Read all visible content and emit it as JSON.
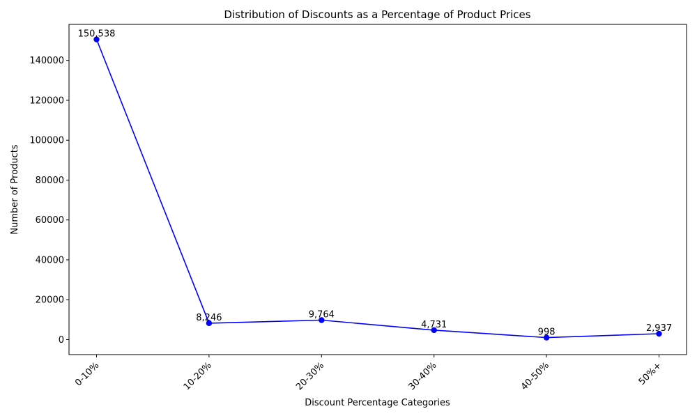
{
  "chart_data": {
    "type": "line",
    "title": "Distribution of Discounts as a Percentage of Product Prices",
    "xlabel": "Discount Percentage Categories",
    "ylabel": "Number of Products",
    "categories": [
      "0-10%",
      "10-20%",
      "20-30%",
      "30-40%",
      "40-50%",
      "50%+"
    ],
    "series": [
      {
        "values": [
          150538,
          8246,
          9764,
          4731,
          998,
          2937
        ],
        "color": "#0000ff"
      }
    ],
    "data_labels": [
      "150,538",
      "8,246",
      "9,764",
      "4,731",
      "998",
      "2,937"
    ],
    "yticks": [
      0,
      20000,
      40000,
      60000,
      80000,
      100000,
      120000,
      140000
    ],
    "ytick_labels": [
      "0",
      "20000",
      "40000",
      "60000",
      "80000",
      "100000",
      "120000",
      "140000"
    ],
    "ylim": [
      -7527,
      158064
    ],
    "grid": false,
    "legend": "none",
    "xtick_rotation_deg": 45
  }
}
